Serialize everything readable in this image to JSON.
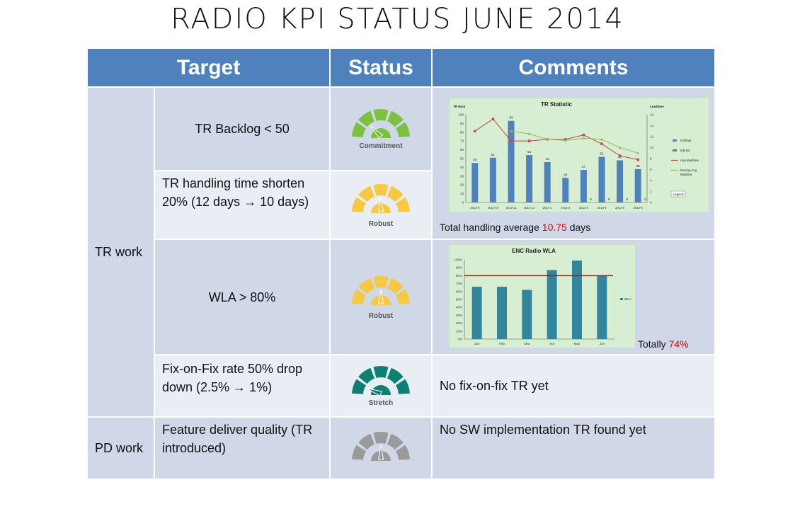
{
  "title": "RADIO KPI STATUS  JUNE 2014",
  "headers": {
    "target": "Target",
    "status": "Status",
    "comments": "Comments"
  },
  "groups": {
    "tr_work": "TR work",
    "pd_work": "PD work"
  },
  "rows": {
    "backlog": {
      "target": "TR Backlog < 50",
      "gauge": "Commitment"
    },
    "handling": {
      "target": "TR handling time shorten 20% (12 days → 10 days)",
      "gauge": "Robust",
      "comment_prefix": "Total handling average ",
      "comment_value": "10.75",
      "comment_suffix": " days"
    },
    "wla": {
      "target": "WLA > 80%",
      "gauge": "Robust",
      "comment_prefix": "Totally ",
      "comment_value": "74%"
    },
    "fof": {
      "target": "Fix-on-Fix rate 50% drop down (2.5% → 1%)",
      "gauge": "Stretch",
      "comment": "No fix-on-fix TR yet"
    },
    "feature": {
      "target": "Feature deliver quality (TR introduced)",
      "gauge": "",
      "comment": "No SW implementation TR found yet"
    }
  },
  "gauge_colors": {
    "Commitment": "#7cc142",
    "Robust": "#f6c844",
    "Stretch": "#0f7f73",
    "none": "#9a9a9a"
  },
  "chart_data": [
    {
      "type": "bar",
      "title": "TR Statistic",
      "ylabel_left": "TR Num",
      "ylabel_right": "Leadtime",
      "categories": [
        "2013-9",
        "2013-10",
        "2013-11",
        "2013-12",
        "2014-1",
        "2014-2",
        "2014-3",
        "2014-4",
        "2014-5",
        "2014-6"
      ],
      "series": [
        {
          "name": "Outflow",
          "kind": "bar",
          "axis": "left",
          "color": "#4f81bd",
          "values": [
            45,
            51,
            93,
            54,
            46,
            28,
            37,
            52,
            48,
            38
          ]
        },
        {
          "name": "Inbund",
          "kind": "bar",
          "axis": "left",
          "color": "#8064a2",
          "values": [
            0,
            0,
            0,
            0,
            0,
            0,
            0,
            0,
            0,
            0
          ]
        },
        {
          "name": "Avg leadtime",
          "kind": "line",
          "axis": "right",
          "color": "#c0504d",
          "values": [
            13,
            15.2,
            11.2,
            11.2,
            11.5,
            11.5,
            12.3,
            10.7,
            8.5,
            7.8
          ]
        },
        {
          "name": "Moving Avg leadtime",
          "kind": "line",
          "axis": "right",
          "color": "#9bbb59",
          "values": [
            null,
            null,
            13,
            12.5,
            11.5,
            11.3,
            11.7,
            11.5,
            10,
            9
          ]
        }
      ],
      "bar_labels": [
        "45",
        "51",
        "93",
        "54",
        "46",
        "28",
        "37",
        "52",
        "48",
        "38"
      ],
      "inbound_labels": [
        "",
        "",
        "",
        "",
        "",
        "",
        "0",
        "0",
        "0",
        "0"
      ],
      "ylim_left": [
        0,
        100
      ],
      "yticks_left": [
        0,
        10,
        20,
        30,
        40,
        50,
        60,
        70,
        80,
        90,
        100
      ],
      "ylim_right": [
        0,
        16
      ],
      "yticks_right": [
        0,
        2,
        4,
        6,
        8,
        10,
        12,
        14,
        16
      ],
      "legend_button": "Legend",
      "grid": false,
      "legend": "right"
    },
    {
      "type": "bar",
      "title": "ENC Radio WLA",
      "categories": [
        "Jan",
        "Feb",
        "Mar",
        "Apr",
        "May",
        "Jun"
      ],
      "series": [
        {
          "name": "WLA",
          "color": "#31859c",
          "values": [
            66,
            66,
            62,
            87,
            99,
            80
          ]
        }
      ],
      "target_line": 80,
      "ylim": [
        0,
        100
      ],
      "yticks": [
        "0%",
        "10%",
        "20%",
        "30%",
        "40%",
        "50%",
        "60%",
        "70%",
        "80%",
        "90%",
        "100%"
      ],
      "grid": false,
      "legend": "right"
    }
  ]
}
